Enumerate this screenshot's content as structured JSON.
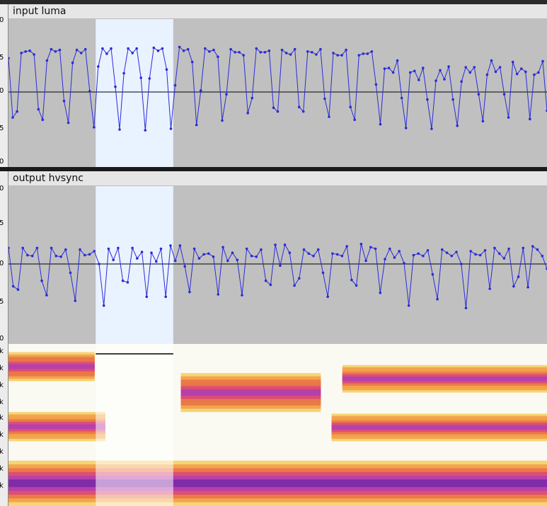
{
  "tracks": [
    {
      "name": "input luma",
      "scale_labels": [
        "0",
        "5",
        "0",
        "5",
        "0"
      ],
      "samples": [
        0.45,
        -0.34,
        -0.26,
        0.52,
        0.54,
        0.55,
        0.5,
        -0.23,
        -0.37,
        0.42,
        0.57,
        0.54,
        0.56,
        -0.12,
        -0.41,
        0.39,
        0.56,
        0.52,
        0.57,
        0.01,
        -0.47,
        0.34,
        0.58,
        0.51,
        0.58,
        0.07,
        -0.5,
        0.25,
        0.58,
        0.52,
        0.58,
        0.19,
        -0.51,
        0.18,
        0.59,
        0.55,
        0.58,
        0.3,
        -0.49,
        0.09,
        0.6,
        0.55,
        0.57,
        0.4,
        -0.44,
        0.02,
        0.58,
        0.54,
        0.56,
        0.47,
        -0.38,
        -0.03,
        0.57,
        0.53,
        0.53,
        0.49,
        -0.28,
        -0.08,
        0.58,
        0.53,
        0.53,
        0.55,
        -0.21,
        -0.26,
        0.56,
        0.52,
        0.5,
        0.57,
        -0.2,
        -0.26,
        0.54,
        0.53,
        0.5,
        0.57,
        -0.09,
        -0.33,
        0.52,
        0.49,
        0.49,
        0.56,
        -0.2,
        -0.37,
        0.49,
        0.51,
        0.51,
        0.54,
        0.1,
        -0.43,
        0.31,
        0.32,
        0.26,
        0.42,
        -0.08,
        -0.48,
        0.26,
        0.28,
        0.16,
        0.32,
        -0.1,
        -0.49,
        0.15,
        0.29,
        0.17,
        0.34,
        -0.1,
        -0.45,
        0.14,
        0.33,
        0.26,
        0.33,
        -0.03,
        -0.39,
        0.23,
        0.42,
        0.27,
        0.33,
        -0.03,
        -0.34,
        0.4,
        0.24,
        0.31,
        0.27,
        -0.36,
        0.23,
        0.26,
        0.41,
        -0.25
      ],
      "selection_start": 0.162,
      "selection_end": 0.306
    },
    {
      "name": "output hvsync",
      "scale_labels": [
        "0",
        "5",
        "0",
        "5",
        "0"
      ],
      "samples": [
        0.2,
        -0.28,
        -0.32,
        0.2,
        0.11,
        0.1,
        0.2,
        -0.21,
        -0.39,
        0.2,
        0.1,
        0.09,
        0.18,
        -0.11,
        -0.46,
        0.18,
        0.11,
        0.12,
        0.16,
        0.0,
        -0.52,
        0.19,
        0.05,
        0.2,
        -0.21,
        -0.23,
        0.2,
        0.07,
        0.15,
        -0.41,
        0.14,
        0.03,
        0.19,
        -0.41,
        0.23,
        0.04,
        0.23,
        -0.03,
        -0.35,
        0.19,
        0.07,
        0.12,
        0.13,
        0.09,
        -0.38,
        0.21,
        0.04,
        0.14,
        0.05,
        -0.39,
        0.19,
        0.1,
        0.09,
        0.18,
        -0.21,
        -0.26,
        0.24,
        -0.02,
        0.24,
        0.14,
        -0.27,
        -0.18,
        0.18,
        0.13,
        0.1,
        0.18,
        -0.11,
        -0.41,
        0.13,
        0.12,
        0.1,
        0.22,
        -0.2,
        -0.27,
        0.25,
        0.04,
        0.21,
        0.19,
        -0.36,
        0.06,
        0.19,
        0.08,
        0.16,
        0.01,
        -0.52,
        0.11,
        0.13,
        0.1,
        0.17,
        -0.13,
        -0.44,
        0.18,
        0.14,
        0.1,
        0.15,
        0.0,
        -0.55,
        0.16,
        0.12,
        0.11,
        0.17,
        -0.31,
        0.2,
        0.13,
        0.07,
        0.19,
        -0.28,
        -0.16,
        0.2,
        -0.29,
        0.22,
        0.18,
        0.1,
        -0.06
      ],
      "selection_start": 0.162,
      "selection_end": 0.306
    }
  ],
  "spectrogram": {
    "scale_labels": [
      "k",
      "k",
      "k",
      "k",
      "k",
      "k",
      "k",
      "k",
      "k"
    ],
    "bands": [
      {
        "y0": 0.72,
        "y1": 1.0,
        "from": 0.0,
        "to": 1.0,
        "intensity": 0.95
      },
      {
        "y0": 0.42,
        "y1": 0.6,
        "from": 0.0,
        "to": 0.18,
        "intensity": 0.8
      },
      {
        "y0": 0.05,
        "y1": 0.23,
        "from": 0.0,
        "to": 0.16,
        "intensity": 0.85
      },
      {
        "y0": 0.18,
        "y1": 0.42,
        "from": 0.32,
        "to": 0.58,
        "intensity": 0.85
      },
      {
        "y0": 0.43,
        "y1": 0.6,
        "from": 0.6,
        "to": 1.0,
        "intensity": 0.8
      },
      {
        "y0": 0.13,
        "y1": 0.3,
        "from": 0.62,
        "to": 1.0,
        "intensity": 0.75
      }
    ],
    "selection_start": 0.162,
    "selection_end": 0.306
  },
  "colors": {
    "waveform": "#2b2bd6",
    "track_bg": "#c0c0c0",
    "selection": "#e9f2ff",
    "zero_line": "#000000"
  }
}
